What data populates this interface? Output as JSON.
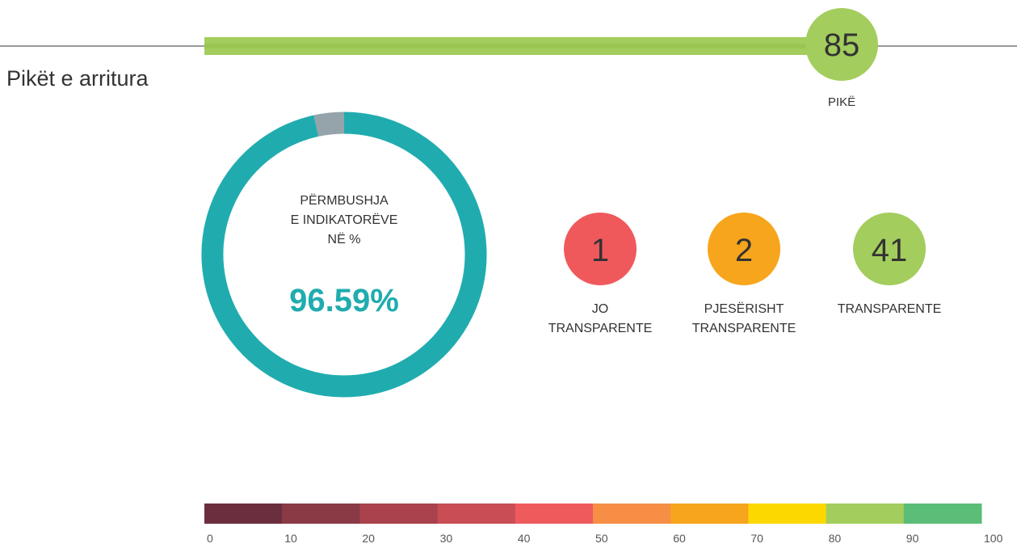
{
  "title": "Pikët e arritura",
  "score": {
    "value": 85,
    "label": "PIKË",
    "color": "#a3cd5d"
  },
  "fulfillment": {
    "lines": [
      "PËRMBUSHJA",
      "E INDIKATORËVE",
      "NË %"
    ],
    "value": 96.59,
    "value_label": "96.59%",
    "color": "#20acaf",
    "rest_color": "#95a3ab"
  },
  "counts": [
    {
      "value": 1,
      "label_lines": [
        "JO",
        "TRANSPARENTE"
      ],
      "color": "#f0595c"
    },
    {
      "value": 2,
      "label_lines": [
        "PJESËRISHT",
        "TRANSPARENTE"
      ],
      "color": "#f7a51c"
    },
    {
      "value": 41,
      "label_lines": [
        "TRANSPARENTE"
      ],
      "color": "#a3cd5d"
    }
  ],
  "scale": {
    "ticks": [
      0,
      10,
      20,
      30,
      40,
      50,
      60,
      70,
      80,
      90,
      100
    ],
    "colors": [
      "#6b2e3e",
      "#8a3a45",
      "#a9424c",
      "#c84d55",
      "#ef5a5d",
      "#f68e45",
      "#f6a51d",
      "#fdd800",
      "#a3cd5d",
      "#5bbd77"
    ]
  }
}
